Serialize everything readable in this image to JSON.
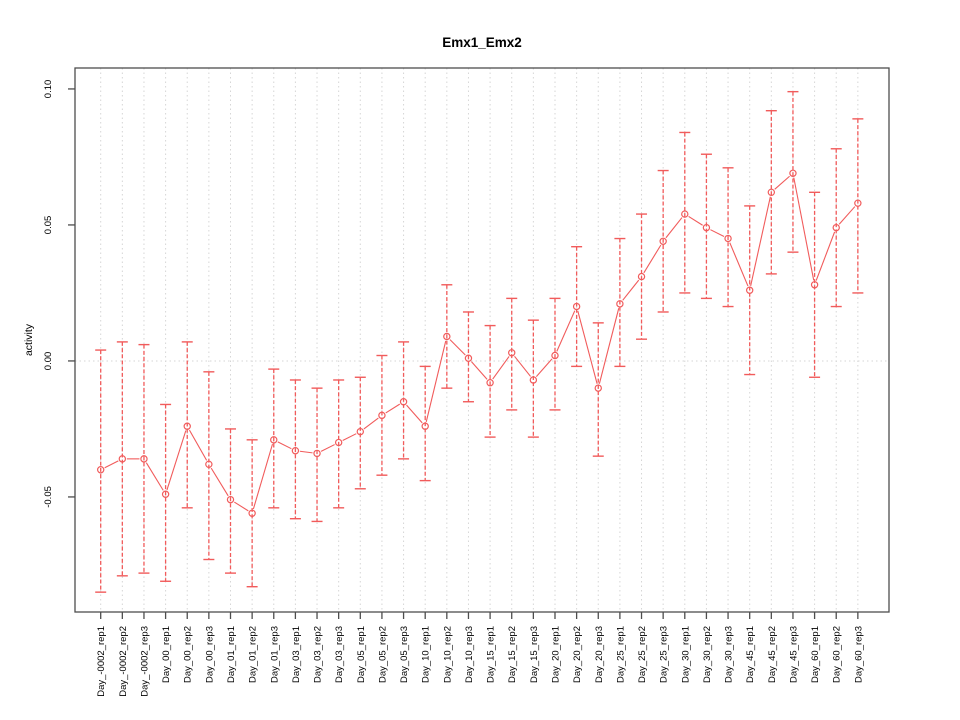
{
  "window": {
    "background": "#ffffff"
  },
  "chart_data": {
    "type": "line",
    "title": "Emx1_Emx2",
    "xlabel": "",
    "ylabel": "activity",
    "ylim": [
      -0.0923,
      0.1077
    ],
    "yticks": [
      -0.05,
      0.0,
      0.05,
      0.1
    ],
    "ytick_labels": [
      "-0.05",
      "0.00",
      "0.05",
      "0.10"
    ],
    "grid": "vertical dotted line per category; horizontal dotted line at y=0; light gray",
    "legend_position": "none",
    "marker": "open-circle",
    "error_bars": true,
    "colors": {
      "series": "#f15b5b",
      "grid": "#d6d6d6",
      "frame": "#4d4d4d",
      "text": "#000000",
      "background": "#ffffff"
    },
    "categories": [
      "Day_-0002_rep1",
      "Day_-0002_rep2",
      "Day_-0002_rep3",
      "Day_00_rep1",
      "Day_00_rep2",
      "Day_00_rep3",
      "Day_01_rep1",
      "Day_01_rep2",
      "Day_01_rep3",
      "Day_03_rep1",
      "Day_03_rep2",
      "Day_03_rep3",
      "Day_05_rep1",
      "Day_05_rep2",
      "Day_05_rep3",
      "Day_10_rep1",
      "Day_10_rep2",
      "Day_10_rep3",
      "Day_15_rep1",
      "Day_15_rep2",
      "Day_15_rep3",
      "Day_20_rep1",
      "Day_20_rep2",
      "Day_20_rep3",
      "Day_25_rep1",
      "Day_25_rep2",
      "Day_25_rep3",
      "Day_30_rep1",
      "Day_30_rep2",
      "Day_30_rep3",
      "Day_45_rep1",
      "Day_45_rep2",
      "Day_45_rep3",
      "Day_60_rep1",
      "Day_60_rep2",
      "Day_60_rep3"
    ],
    "series": [
      {
        "name": "activity",
        "values": [
          -0.04,
          -0.036,
          -0.036,
          -0.049,
          -0.024,
          -0.038,
          -0.051,
          -0.056,
          -0.029,
          -0.033,
          -0.034,
          -0.03,
          -0.026,
          -0.02,
          -0.015,
          -0.024,
          0.009,
          0.001,
          -0.008,
          0.003,
          -0.007,
          0.002,
          0.02,
          -0.01,
          0.021,
          0.031,
          0.044,
          0.054,
          0.049,
          0.045,
          0.026,
          0.062,
          0.069,
          0.028,
          0.049,
          0.058
        ],
        "err_high": [
          0.004,
          0.007,
          0.006,
          -0.016,
          0.007,
          -0.004,
          -0.025,
          -0.029,
          -0.003,
          -0.007,
          -0.01,
          -0.007,
          -0.006,
          0.002,
          0.007,
          -0.002,
          0.028,
          0.018,
          0.013,
          0.023,
          0.015,
          0.023,
          0.042,
          0.014,
          0.045,
          0.054,
          0.07,
          0.084,
          0.076,
          0.071,
          0.057,
          0.092,
          0.099,
          0.062,
          0.078,
          0.089
        ],
        "err_low": [
          -0.085,
          -0.079,
          -0.078,
          -0.081,
          -0.054,
          -0.073,
          -0.078,
          -0.083,
          -0.054,
          -0.058,
          -0.059,
          -0.054,
          -0.047,
          -0.042,
          -0.036,
          -0.044,
          -0.01,
          -0.015,
          -0.028,
          -0.018,
          -0.028,
          -0.018,
          -0.002,
          -0.035,
          -0.002,
          0.008,
          0.018,
          0.025,
          0.023,
          0.02,
          -0.005,
          0.032,
          0.04,
          -0.006,
          0.02,
          0.025
        ]
      }
    ]
  }
}
